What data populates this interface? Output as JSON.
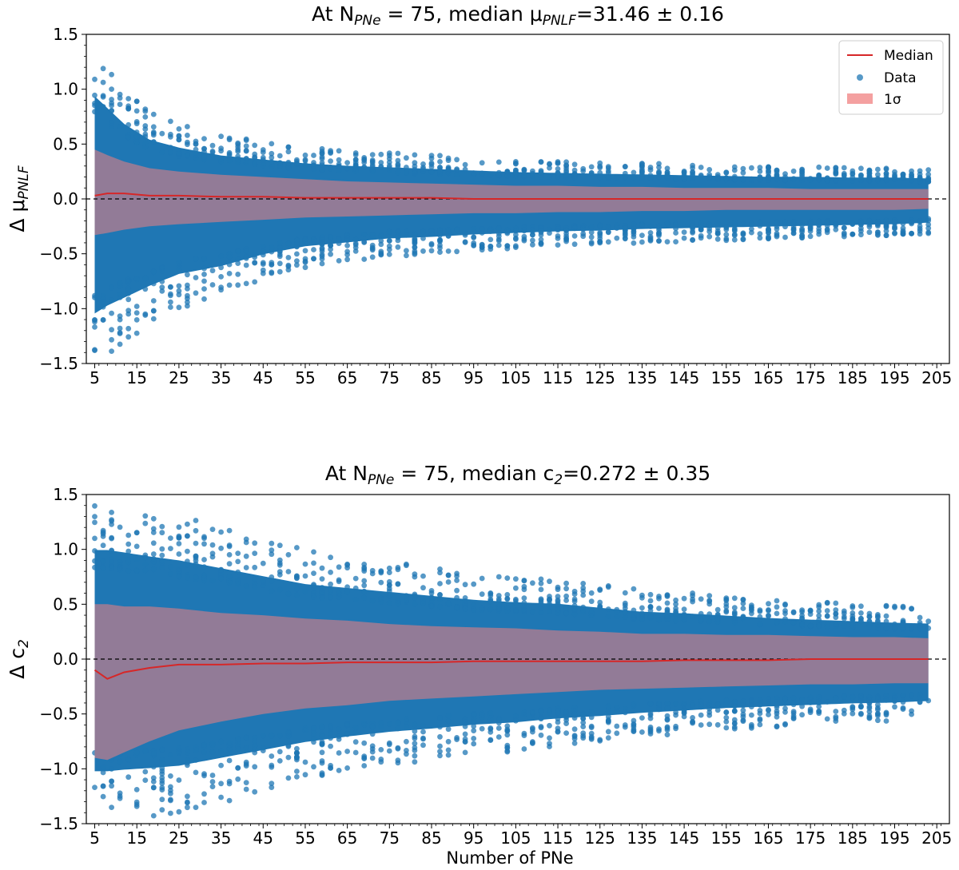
{
  "chart_data": [
    {
      "type": "scatter",
      "title_prefix": "At N",
      "title_sub": "PNe",
      "title_mid": " = 75, median μ",
      "title_sub2": "PNLF",
      "title_suffix": "=31.46 ± 0.16",
      "ylabel_main": "Δ μ",
      "ylabel_sub": "PNLF",
      "xlabel": "",
      "xlim": [
        3,
        208
      ],
      "ylim": [
        -1.5,
        1.5
      ],
      "xticks": [
        5,
        15,
        25,
        35,
        45,
        55,
        65,
        75,
        85,
        95,
        105,
        115,
        125,
        135,
        145,
        155,
        165,
        175,
        185,
        195,
        205
      ],
      "yticks": [
        -1.5,
        -1.0,
        -0.5,
        0.0,
        0.5,
        1.0,
        1.5
      ],
      "ytick_labels": [
        "−1.5",
        "−1.0",
        "−0.5",
        "0.0",
        "0.5",
        "1.0",
        "1.5"
      ],
      "reference_line_y": 0.0,
      "legend": {
        "position": "top-right",
        "entries": [
          "Median",
          "Data",
          "1σ"
        ]
      },
      "x_range_data": [
        5,
        203
      ],
      "n_values": [
        5,
        8,
        12,
        18,
        25,
        35,
        45,
        55,
        65,
        75,
        85,
        95,
        105,
        115,
        125,
        135,
        145,
        155,
        165,
        175,
        185,
        195,
        203
      ],
      "median": [
        0.03,
        0.05,
        0.05,
        0.03,
        0.03,
        0.02,
        0.02,
        0.01,
        0.01,
        0.01,
        0.01,
        0.0,
        0.0,
        0.0,
        0.0,
        0.0,
        0.0,
        0.0,
        0.0,
        0.0,
        0.0,
        0.0,
        0.0
      ],
      "sigma_upper": [
        0.45,
        0.4,
        0.34,
        0.28,
        0.25,
        0.22,
        0.2,
        0.18,
        0.16,
        0.15,
        0.14,
        0.13,
        0.12,
        0.12,
        0.11,
        0.11,
        0.1,
        0.1,
        0.1,
        0.09,
        0.09,
        0.09,
        0.09
      ],
      "sigma_lower": [
        -0.33,
        -0.31,
        -0.28,
        -0.25,
        -0.23,
        -0.21,
        -0.19,
        -0.17,
        -0.16,
        -0.15,
        -0.14,
        -0.13,
        -0.13,
        -0.12,
        -0.12,
        -0.11,
        -0.11,
        -0.1,
        -0.1,
        -0.1,
        -0.1,
        -0.1,
        -0.09
      ],
      "scatter_spread_upper": [
        1.3,
        1.15,
        0.95,
        0.75,
        0.65,
        0.55,
        0.5,
        0.45,
        0.42,
        0.4,
        0.38,
        0.36,
        0.34,
        0.33,
        0.32,
        0.31,
        0.3,
        0.29,
        0.28,
        0.28,
        0.27,
        0.27,
        0.26
      ],
      "scatter_spread_lower": [
        -1.45,
        -1.35,
        -1.25,
        -1.1,
        -0.95,
        -0.85,
        -0.7,
        -0.6,
        -0.55,
        -0.5,
        -0.48,
        -0.45,
        -0.43,
        -0.41,
        -0.4,
        -0.38,
        -0.37,
        -0.36,
        -0.35,
        -0.34,
        -0.33,
        -0.32,
        -0.3
      ],
      "colors": {
        "data": "#1f77b4",
        "median": "#d62728",
        "sigma": "#f08080"
      }
    },
    {
      "type": "scatter",
      "title_prefix": "At N",
      "title_sub": "PNe",
      "title_mid": " = 75, median c",
      "title_sub2": "2",
      "title_suffix": "=0.272 ± 0.35",
      "ylabel_main": "Δ c",
      "ylabel_sub": "2",
      "xlabel": "Number of PNe",
      "xlim": [
        3,
        208
      ],
      "ylim": [
        -1.5,
        1.5
      ],
      "xticks": [
        5,
        15,
        25,
        35,
        45,
        55,
        65,
        75,
        85,
        95,
        105,
        115,
        125,
        135,
        145,
        155,
        165,
        175,
        185,
        195,
        205
      ],
      "yticks": [
        -1.5,
        -1.0,
        -0.5,
        0.0,
        0.5,
        1.0,
        1.5
      ],
      "ytick_labels": [
        "−1.5",
        "−1.0",
        "−0.5",
        "0.0",
        "0.5",
        "1.0",
        "1.5"
      ],
      "reference_line_y": 0.0,
      "x_range_data": [
        5,
        203
      ],
      "n_values": [
        5,
        8,
        12,
        18,
        25,
        35,
        45,
        55,
        65,
        75,
        85,
        95,
        105,
        115,
        125,
        135,
        145,
        155,
        165,
        175,
        185,
        195,
        203
      ],
      "median": [
        -0.1,
        -0.18,
        -0.12,
        -0.08,
        -0.05,
        -0.05,
        -0.04,
        -0.04,
        -0.03,
        -0.03,
        -0.03,
        -0.02,
        -0.02,
        -0.02,
        -0.02,
        -0.02,
        -0.01,
        -0.01,
        -0.01,
        0.0,
        0.0,
        0.0,
        0.0
      ],
      "sigma_upper": [
        0.5,
        0.5,
        0.48,
        0.48,
        0.46,
        0.42,
        0.4,
        0.37,
        0.35,
        0.32,
        0.3,
        0.29,
        0.28,
        0.26,
        0.25,
        0.23,
        0.23,
        0.22,
        0.22,
        0.21,
        0.2,
        0.2,
        0.19
      ],
      "sigma_lower": [
        -0.9,
        -0.92,
        -0.85,
        -0.75,
        -0.65,
        -0.57,
        -0.5,
        -0.45,
        -0.42,
        -0.38,
        -0.36,
        -0.34,
        -0.32,
        -0.3,
        -0.28,
        -0.27,
        -0.26,
        -0.25,
        -0.24,
        -0.23,
        -0.23,
        -0.22,
        -0.22
      ],
      "scatter_spread_upper": [
        1.38,
        1.38,
        1.35,
        1.3,
        1.25,
        1.15,
        1.05,
        0.95,
        0.9,
        0.85,
        0.8,
        0.75,
        0.72,
        0.7,
        0.65,
        0.6,
        0.58,
        0.55,
        0.52,
        0.5,
        0.48,
        0.46,
        0.45
      ],
      "scatter_spread_lower": [
        -1.42,
        -1.42,
        -1.4,
        -1.38,
        -1.35,
        -1.25,
        -1.15,
        -1.05,
        -0.98,
        -0.92,
        -0.88,
        -0.83,
        -0.8,
        -0.75,
        -0.72,
        -0.68,
        -0.65,
        -0.62,
        -0.6,
        -0.58,
        -0.56,
        -0.55,
        -0.53
      ],
      "colors": {
        "data": "#1f77b4",
        "median": "#d62728",
        "sigma": "#f08080"
      }
    }
  ]
}
